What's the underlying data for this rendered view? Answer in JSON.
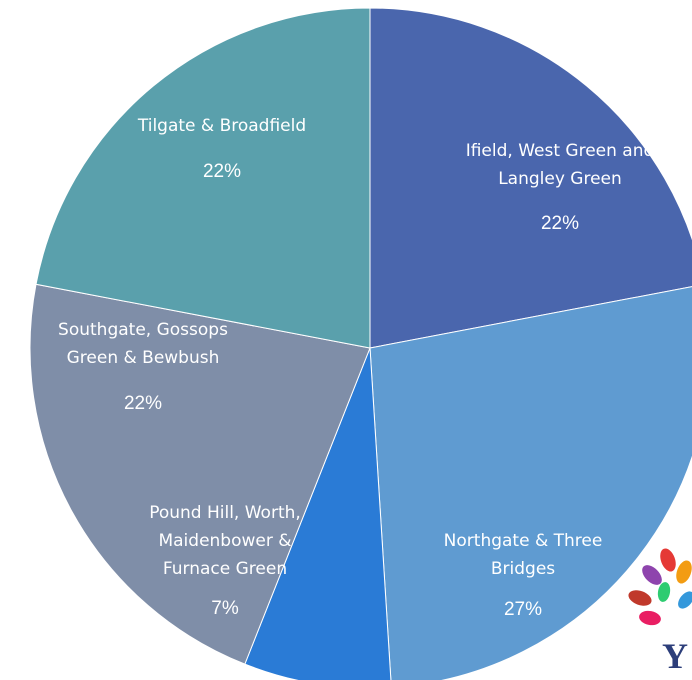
{
  "chart_data": {
    "type": "pie",
    "categories": [
      "Ifield, West Green and Langley Green",
      "Northgate & Three Bridges",
      "Pound Hill, Worth, Maidenbower & Furnace Green",
      "Southgate, Gossops Green & Bewbush",
      "Tilgate & Broadfield"
    ],
    "values": [
      22,
      27,
      7,
      22,
      22
    ],
    "value_labels": [
      "22%",
      "27%",
      "7%",
      "22%",
      "22%"
    ],
    "colors": [
      "#4a66ad",
      "#5f9bd1",
      "#2a7bd6",
      "#7f8ea8",
      "#5aa0ac"
    ]
  }
}
